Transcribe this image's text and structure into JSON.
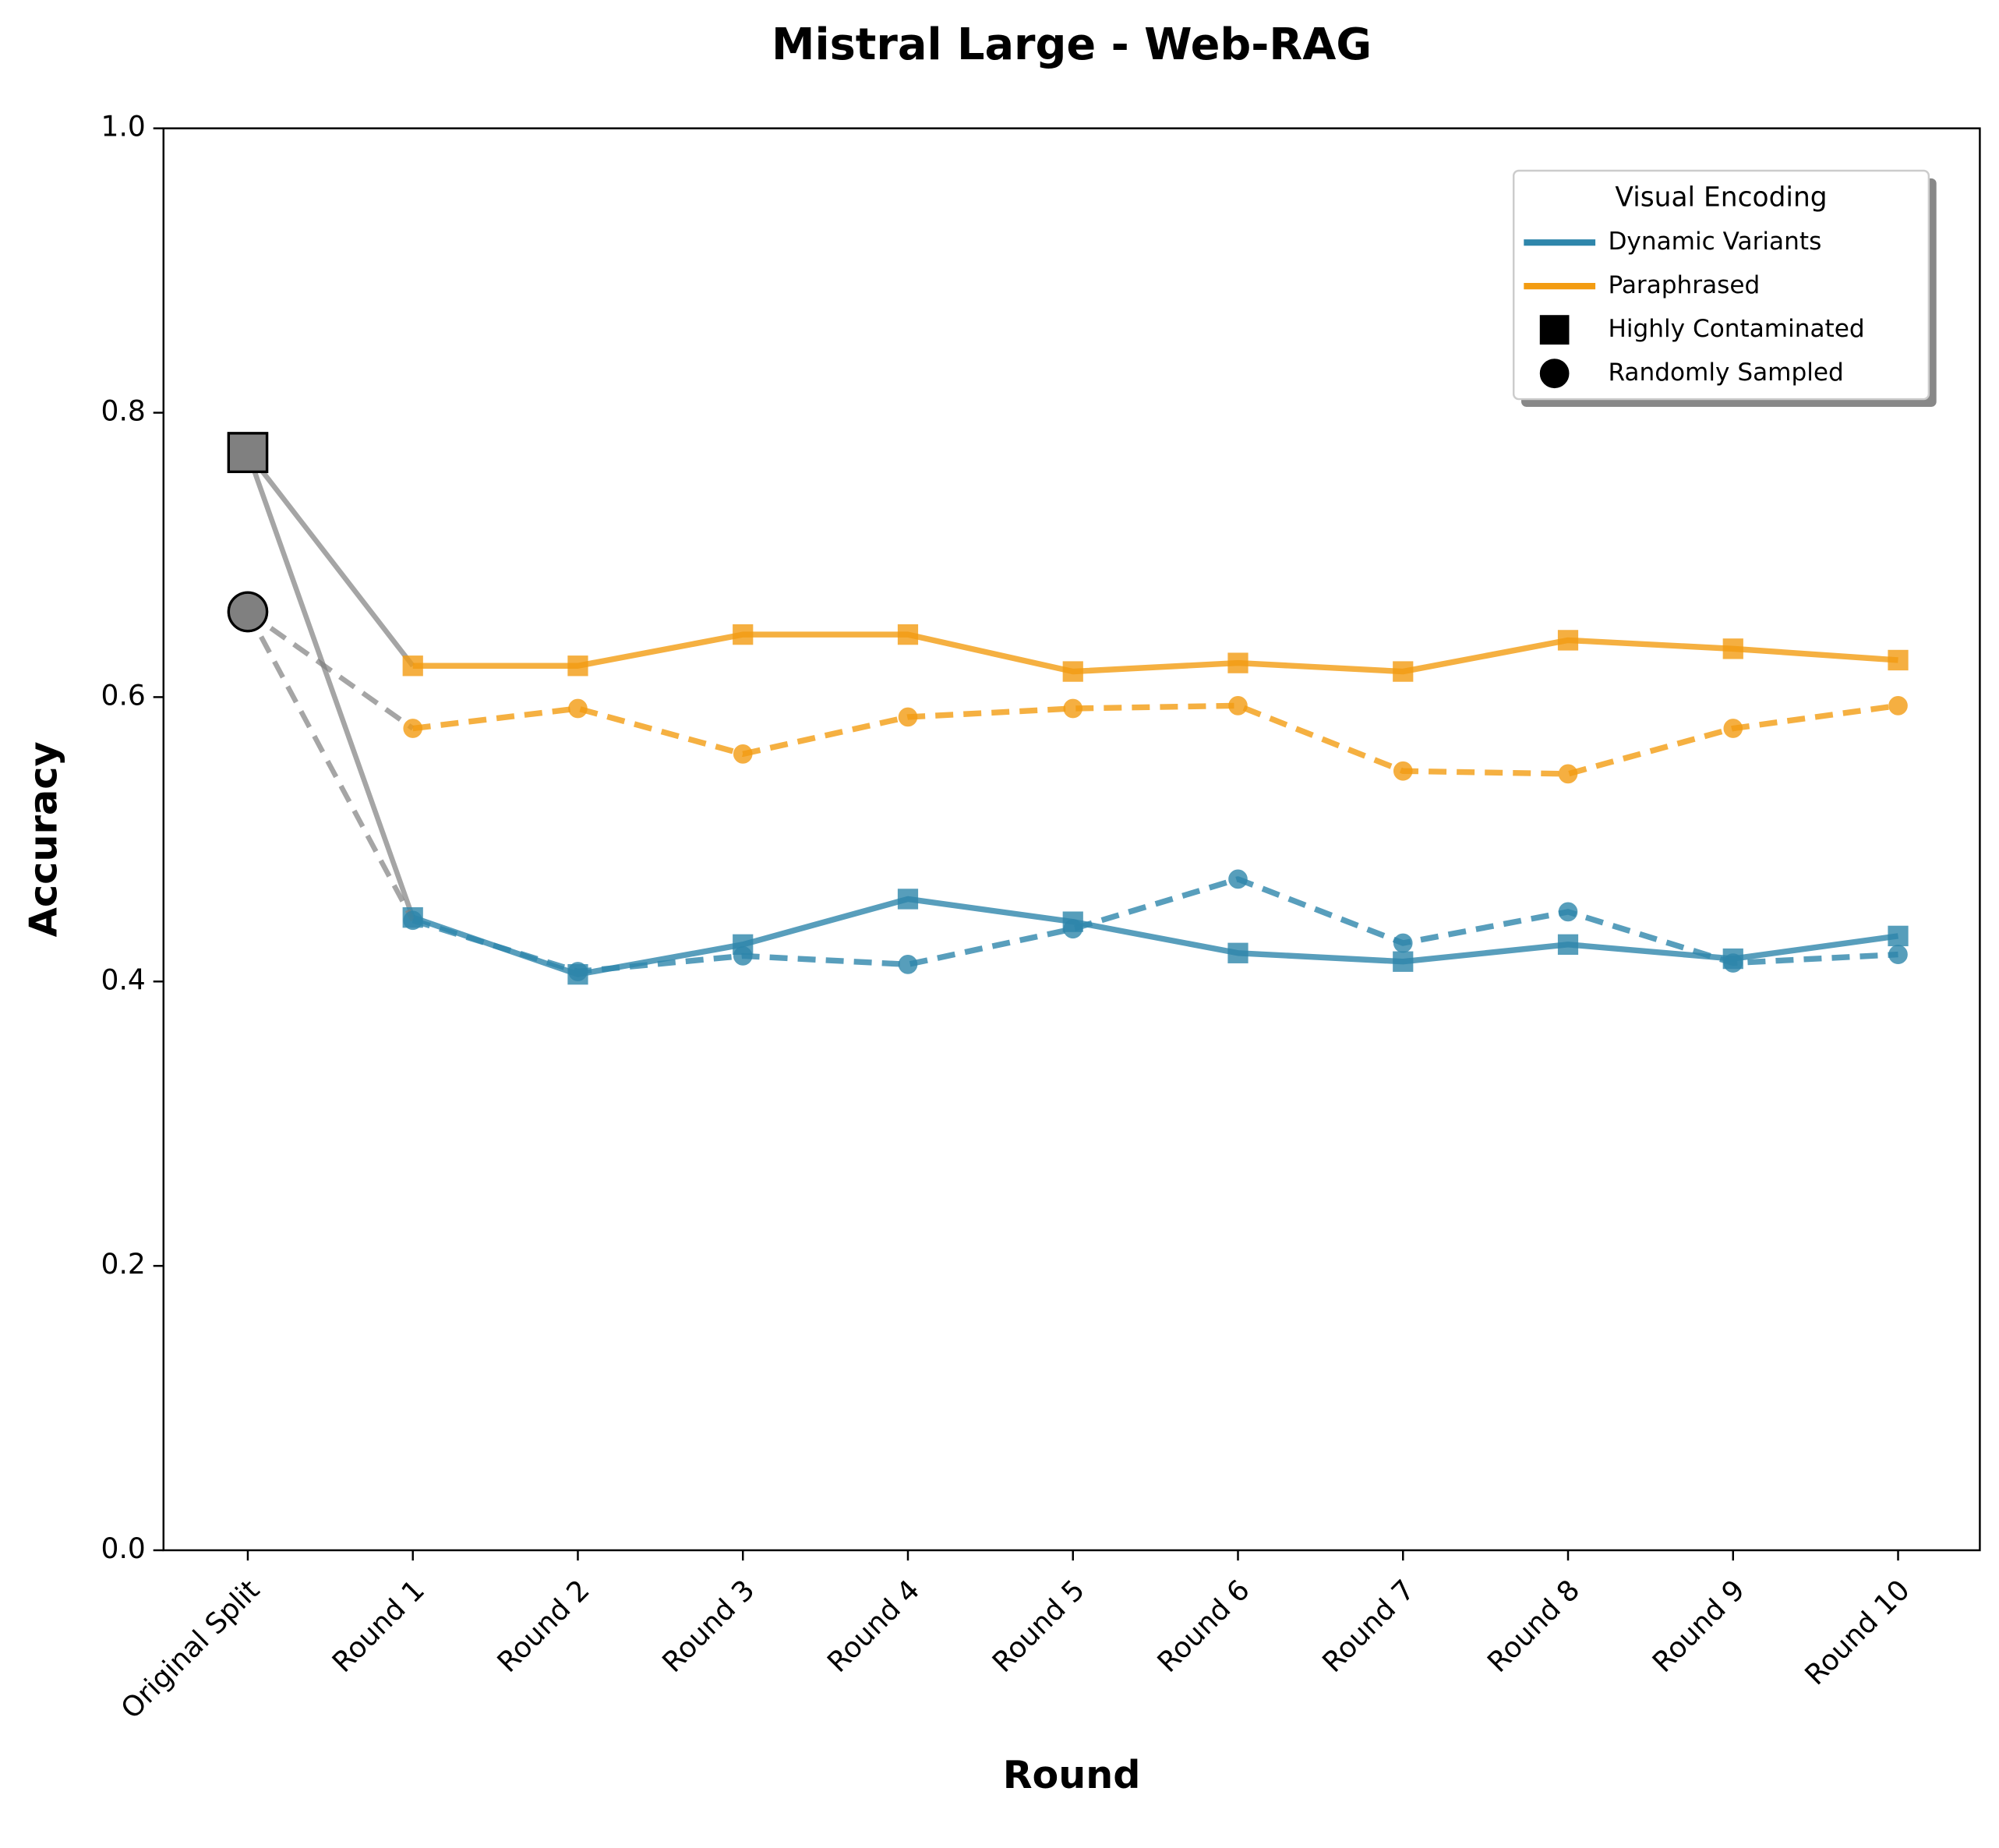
{
  "chart_data": {
    "type": "line",
    "title": "Mistral Large - Web-RAG",
    "x_label": "Round",
    "y_label": "Accuracy",
    "categories": [
      "Original Split",
      "Round 1",
      "Round 2",
      "Round 3",
      "Round 4",
      "Round 5",
      "Round 6",
      "Round 7",
      "Round 8",
      "Round 9",
      "Round 10"
    ],
    "ylim": [
      0,
      1
    ],
    "yticks": [
      {
        "value": 0,
        "label": "0.0"
      },
      {
        "value": 0.2,
        "label": "0.2"
      },
      {
        "value": 0.4,
        "label": "0.4"
      },
      {
        "value": 0.6,
        "label": "0.6"
      },
      {
        "value": 0.8,
        "label": "0.8"
      },
      {
        "value": 1,
        "label": "1.0"
      }
    ],
    "original_color": "#808080",
    "legend": {
      "title": "Visual Encoding",
      "corner": "upper right",
      "colors": [
        {
          "label": "Dynamic Variants",
          "color": "#2e86ab"
        },
        {
          "label": "Paraphrased",
          "color": "#f39c12"
        }
      ],
      "markers": [
        {
          "label": "Highly Contaminated",
          "marker": "square",
          "dash": "solid"
        },
        {
          "label": "Randomly Sampled",
          "marker": "circle",
          "dash": "dashed"
        }
      ]
    },
    "series": [
      {
        "color_key": 0,
        "marker_key": 0,
        "values": [
          0.772,
          0.445,
          0.405,
          0.426,
          0.458,
          0.442,
          0.42,
          0.414,
          0.426,
          0.416,
          0.432
        ]
      },
      {
        "color_key": 0,
        "marker_key": 1,
        "values": [
          0.66,
          0.443,
          0.407,
          0.418,
          0.412,
          0.437,
          0.472,
          0.427,
          0.449,
          0.413,
          0.419
        ]
      },
      {
        "color_key": 1,
        "marker_key": 0,
        "values": [
          0.772,
          0.622,
          0.622,
          0.644,
          0.644,
          0.618,
          0.624,
          0.618,
          0.64,
          0.634,
          0.626
        ]
      },
      {
        "color_key": 1,
        "marker_key": 1,
        "values": [
          0.66,
          0.578,
          0.592,
          0.56,
          0.586,
          0.592,
          0.594,
          0.548,
          0.546,
          0.578,
          0.594
        ]
      }
    ]
  }
}
